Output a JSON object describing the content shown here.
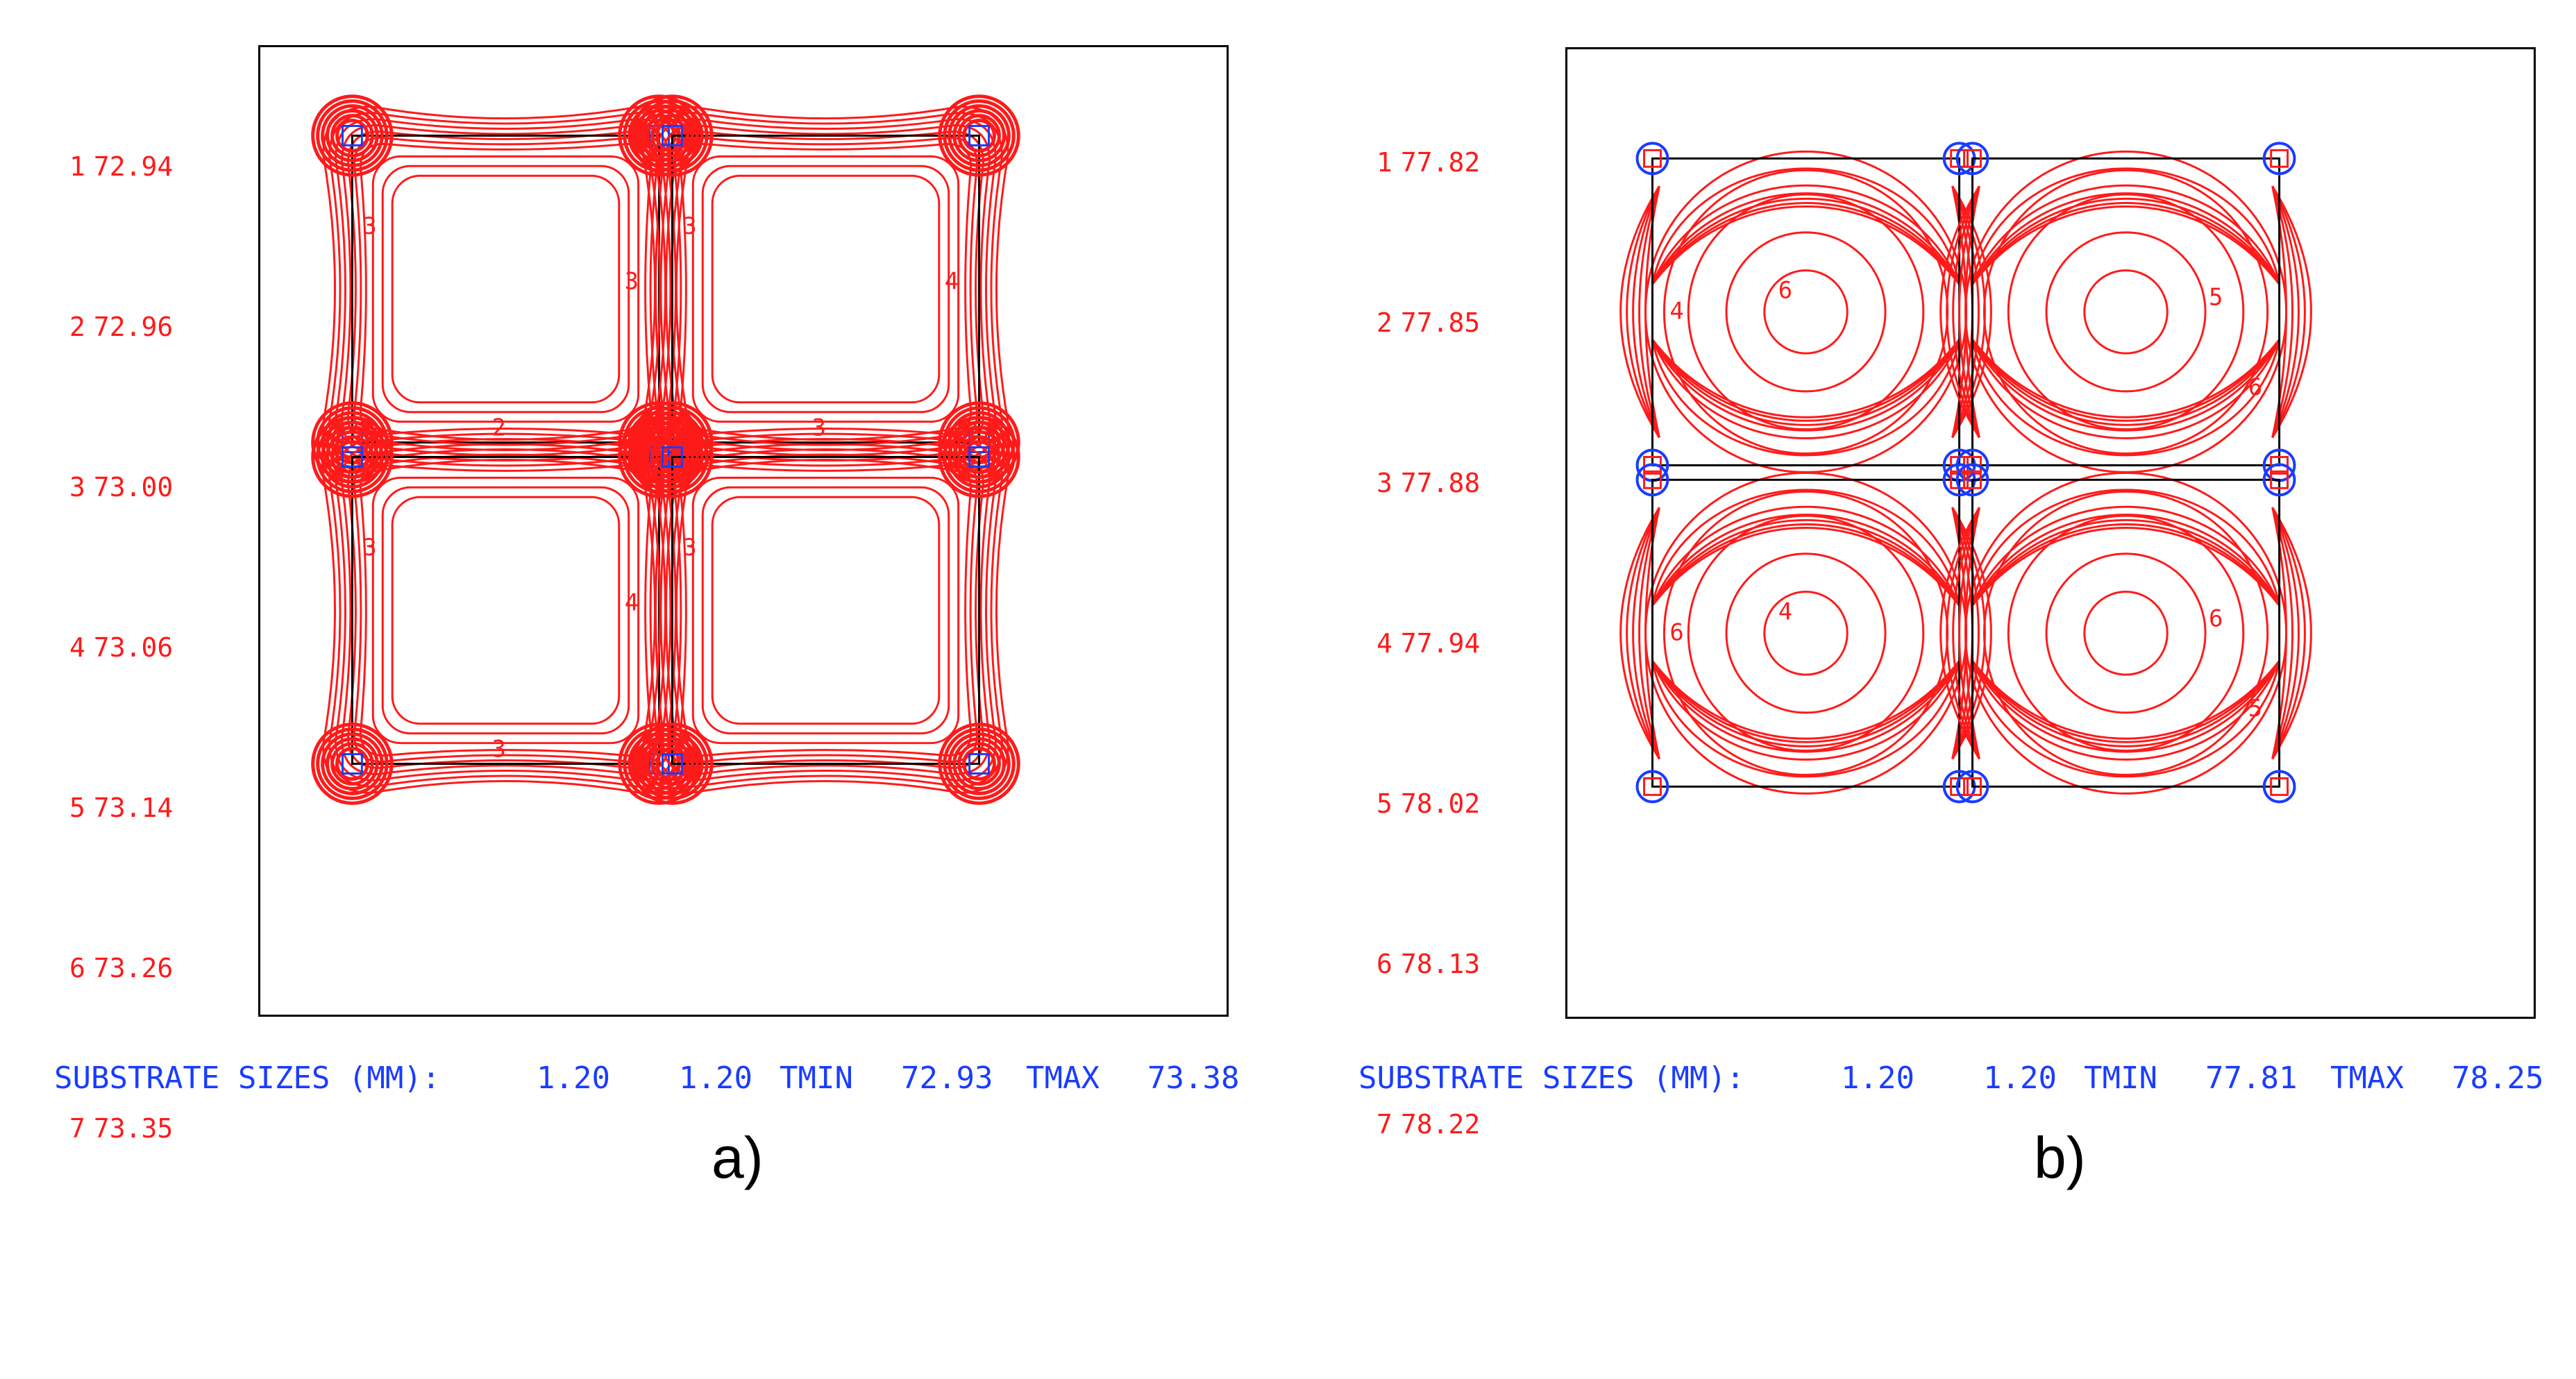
{
  "panels": [
    {
      "id": "a",
      "legend": [
        {
          "index": "1",
          "value": "72.94"
        },
        {
          "index": "2",
          "value": "72.96"
        },
        {
          "index": "3",
          "value": "73.00"
        },
        {
          "index": "4",
          "value": "73.06"
        },
        {
          "index": "5",
          "value": "73.14"
        },
        {
          "index": "6",
          "value": "73.26"
        },
        {
          "index": "7",
          "value": "73.35"
        }
      ],
      "contour_labels": [
        "3",
        "3",
        "2",
        "3",
        "4",
        "3",
        "3",
        "4",
        "3",
        "3"
      ],
      "footer": {
        "label": "SUBSTRATE SIZES (MM):",
        "size_x": "1.20",
        "size_y": "1.20",
        "tmin_label": "TMIN",
        "tmin": "72.93",
        "tmax_label": "TMAX",
        "tmax": "73.38"
      },
      "caption": "a)",
      "contour_style": "edge-rounded"
    },
    {
      "id": "b",
      "legend": [
        {
          "index": "1",
          "value": "77.82"
        },
        {
          "index": "2",
          "value": "77.85"
        },
        {
          "index": "3",
          "value": "77.88"
        },
        {
          "index": "4",
          "value": "77.94"
        },
        {
          "index": "5",
          "value": "78.02"
        },
        {
          "index": "6",
          "value": "78.13"
        },
        {
          "index": "7",
          "value": "78.22"
        }
      ],
      "contour_labels": [
        "6",
        "4",
        "5",
        "6",
        "4",
        "6",
        "6",
        "5",
        "5"
      ],
      "footer": {
        "label": "SUBSTRATE SIZES (MM):",
        "size_x": "1.20",
        "size_y": "1.20",
        "tmin_label": "TMIN",
        "tmin": "77.81",
        "tmax_label": "TMAX",
        "tmax": "78.25"
      },
      "caption": "b)",
      "contour_style": "concentric"
    }
  ],
  "colors": {
    "contour": "#ff1a1a",
    "legend": "#ff1a1a",
    "footer": "#1a3cff",
    "pads": "#1a3cff",
    "frame": "#000000"
  }
}
